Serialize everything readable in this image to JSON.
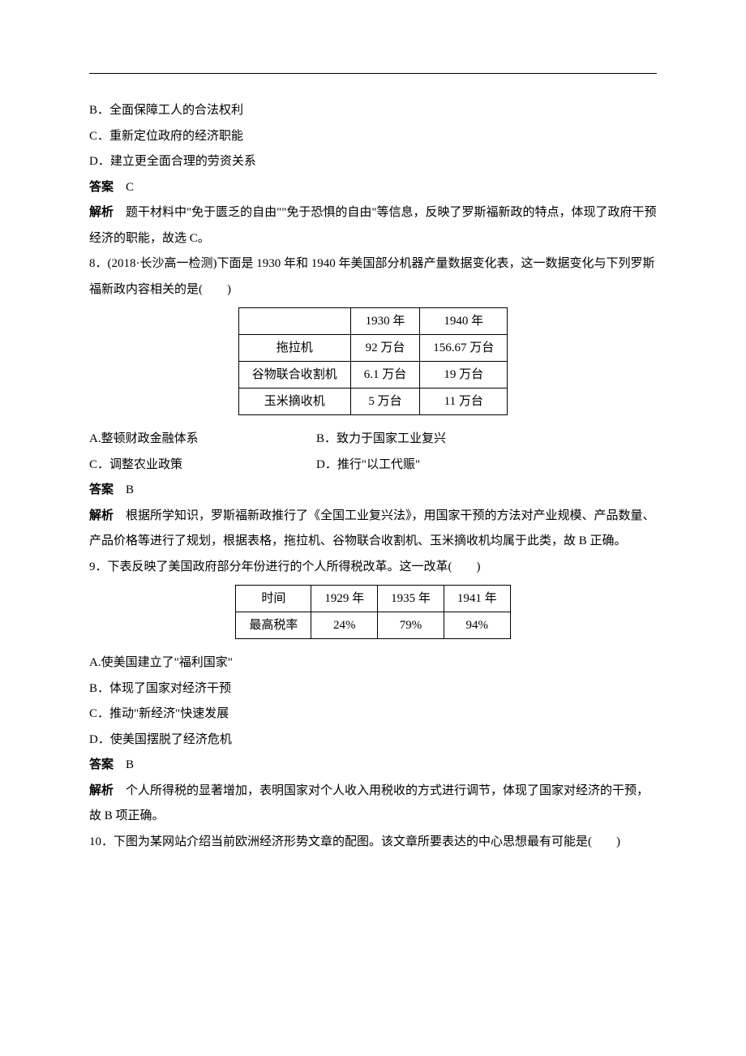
{
  "options_pre": {
    "B": "B．全面保障工人的合法权利",
    "C": "C．重新定位政府的经济职能",
    "D": "D．建立更全面合理的劳资关系"
  },
  "ans7": {
    "label": "答案",
    "value": "　C"
  },
  "exp7": {
    "label": "解析",
    "value": "　题干材料中\"免于匮乏的自由\"\"免于恐惧的自由\"等信息，反映了罗斯福新政的特点，体现了政府干预经济的职能，故选 C。"
  },
  "q8": {
    "stem": "8．(2018·长沙高一检测)下面是 1930 年和 1940 年美国部分机器产量数据变化表，这一数据变化与下列罗斯福新政内容相关的是(　　)",
    "table": {
      "headers": [
        "",
        "1930 年",
        "1940 年"
      ],
      "rows": [
        [
          "拖拉机",
          "92 万台",
          "156.67 万台"
        ],
        [
          "谷物联合收割机",
          "6.1 万台",
          "19 万台"
        ],
        [
          "玉米摘收机",
          "5 万台",
          "11 万台"
        ]
      ]
    },
    "opts": {
      "A": "A.整顿财政金融体系",
      "B": "B．致力于国家工业复兴",
      "C": "C．调整农业政策",
      "D": "D．推行\"以工代赈\""
    },
    "ans": {
      "label": "答案",
      "value": "　B"
    },
    "exp": {
      "label": "解析",
      "value": "　根据所学知识，罗斯福新政推行了《全国工业复兴法》，用国家干预的方法对产业规模、产品数量、产品价格等进行了规划，根据表格，拖拉机、谷物联合收割机、玉米摘收机均属于此类，故 B 正确。"
    }
  },
  "q9": {
    "stem": "9．下表反映了美国政府部分年份进行的个人所得税改革。这一改革(　　)",
    "table": {
      "rows": [
        [
          "时间",
          "1929 年",
          "1935 年",
          "1941 年"
        ],
        [
          "最高税率",
          "24%",
          "79%",
          "94%"
        ]
      ]
    },
    "opts": {
      "A": "A.使美国建立了\"福利国家\"",
      "B": "B．体现了国家对经济干预",
      "C": "C．推动\"新经济\"快速发展",
      "D": "D．使美国摆脱了经济危机"
    },
    "ans": {
      "label": "答案",
      "value": "　B"
    },
    "exp": {
      "label": "解析",
      "value": "　个人所得税的显著增加，表明国家对个人收入用税收的方式进行调节，体现了国家对经济的干预，故 B 项正确。"
    }
  },
  "q10": {
    "stem": "10．下图为某网站介绍当前欧洲经济形势文章的配图。该文章所要表达的中心思想最有可能是(　　)"
  }
}
